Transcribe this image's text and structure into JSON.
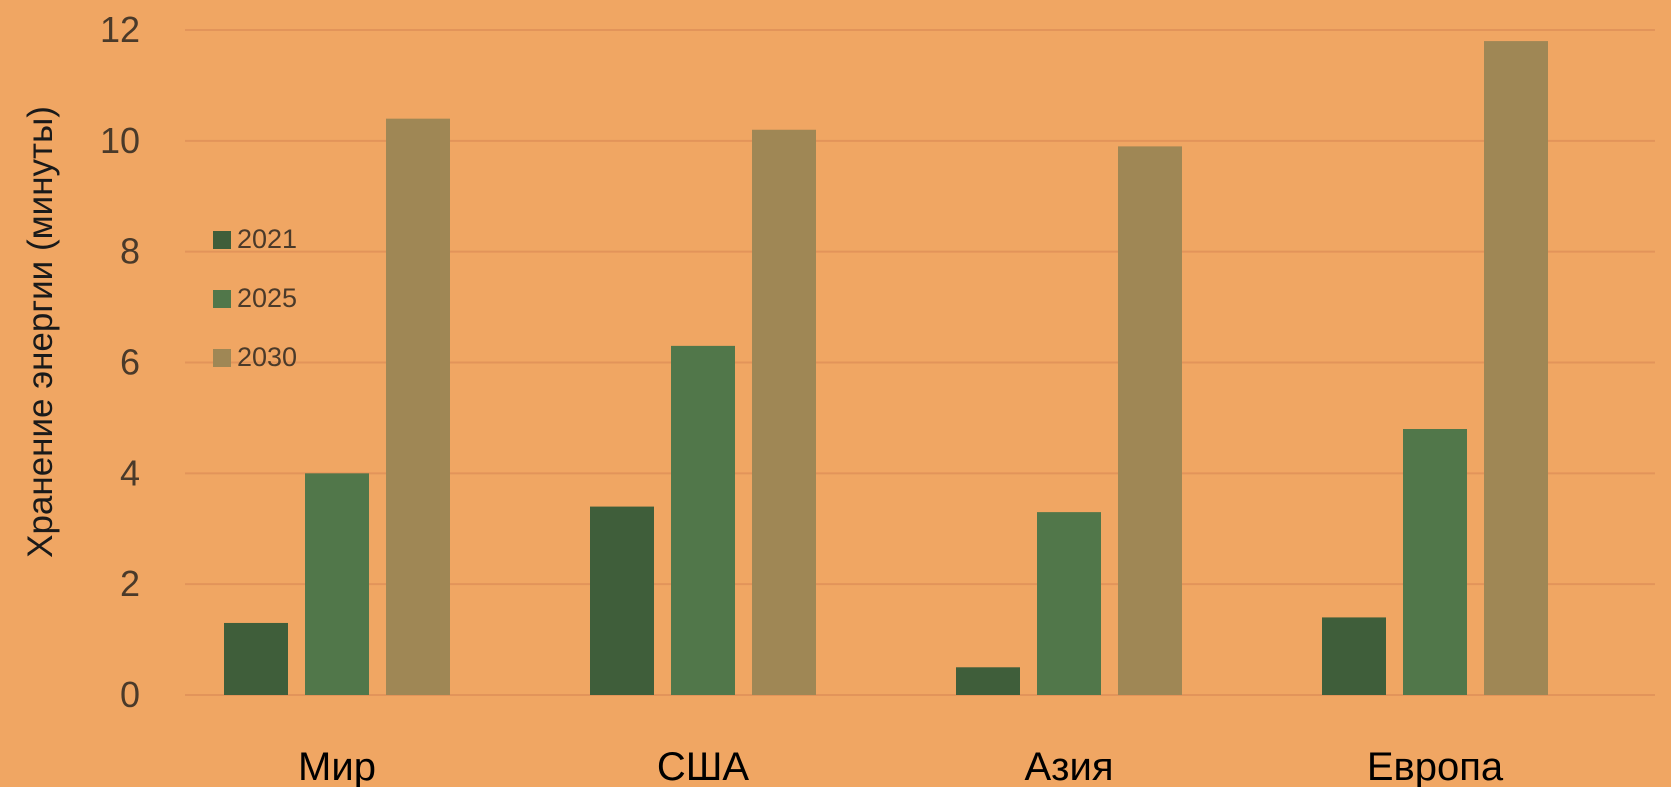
{
  "chart_data": {
    "type": "bar",
    "title": "",
    "xlabel": "",
    "ylabel": "Хранение энергии (минуты)",
    "categories": [
      "Мир",
      "США",
      "Азия",
      "Европа"
    ],
    "series": [
      {
        "name": "2021",
        "values": [
          1.3,
          3.4,
          0.5,
          1.4
        ]
      },
      {
        "name": "2025",
        "values": [
          4.0,
          6.3,
          3.3,
          4.8
        ]
      },
      {
        "name": "2030",
        "values": [
          10.4,
          10.2,
          9.9,
          11.8
        ]
      }
    ],
    "ylim": [
      0,
      12
    ],
    "yticks": [
      "0",
      "2",
      "4",
      "6",
      "8",
      "10",
      "12"
    ],
    "grid": true,
    "legend_position": "left, inside plot",
    "colors": {
      "background": "#f0a663",
      "grid": "#e2945a",
      "series": [
        "#3f5e3a",
        "#51774a",
        "#9f8755"
      ],
      "tick_text": "#4a3a2a",
      "category_text": "#000000",
      "ylabel_text": "#1a1a1a"
    }
  }
}
